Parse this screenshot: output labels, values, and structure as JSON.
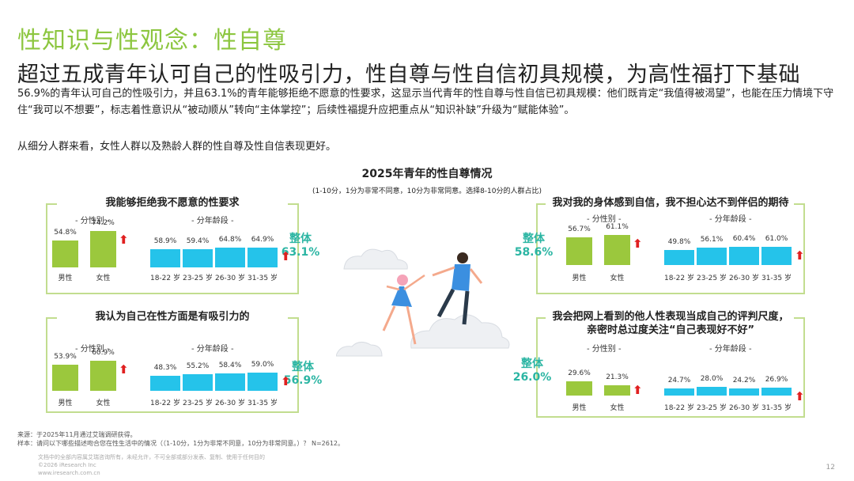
{
  "header": {
    "section_title": "性知识与性观念：性自尊",
    "headline": "超过五成青年认可自己的性吸引力，性自尊与性自信初具规模，为高性福打下基础",
    "intro": "56.9%的青年认可自己的性吸引力，并且63.1%的青年能够拒绝不愿意的性要求，这显示当代青年的性自尊与性自信已初具规模：他们既肯定“我值得被渴望”，也能在压力情境下守住“我可以不想要”，标志着性意识从“被动顺从”转向“主体掌控”；后续性福提升应把重点从“知识补缺”升级为“赋能体验”。",
    "intro2": "从细分人群来看，女性人群以及熟龄人群的性自尊及性自信表现更好。"
  },
  "chart": {
    "title": "2025年青年的性自尊情况",
    "subtitle": "(1-10分，1分为非常不同意，10分为非常同意。选择8-10分的人群占比)",
    "overall_label": "整体",
    "gender_group_label": "- 分性别 -",
    "age_group_label": "- 分年龄段 -"
  },
  "chart_data": [
    {
      "type": "bar",
      "title": "我能够拒绝我不愿意的性要求",
      "overall": "63.1%",
      "gender": {
        "categories": [
          "男性",
          "女性"
        ],
        "values": [
          54.8,
          74.2
        ],
        "labels": [
          "54.8%",
          "74.2%"
        ]
      },
      "age": {
        "categories": [
          "18-22 岁",
          "23-25 岁",
          "26-30 岁",
          "31-35 岁"
        ],
        "values": [
          58.9,
          59.4,
          64.8,
          64.9
        ],
        "labels": [
          "58.9%",
          "59.4%",
          "64.8%",
          "64.9%"
        ]
      }
    },
    {
      "type": "bar",
      "title": "我对我的身体感到自信，我不担心达不到伴侣的期待",
      "overall": "58.6%",
      "gender": {
        "categories": [
          "男性",
          "女性"
        ],
        "values": [
          56.7,
          61.1
        ],
        "labels": [
          "56.7%",
          "61.1%"
        ]
      },
      "age": {
        "categories": [
          "18-22 岁",
          "23-25 岁",
          "26-30 岁",
          "31-35 岁"
        ],
        "values": [
          49.8,
          56.1,
          60.4,
          61.0
        ],
        "labels": [
          "49.8%",
          "56.1%",
          "60.4%",
          "61.0%"
        ]
      }
    },
    {
      "type": "bar",
      "title": "我认为自己在性方面是有吸引力的",
      "overall": "56.9%",
      "gender": {
        "categories": [
          "男性",
          "女性"
        ],
        "values": [
          53.9,
          60.9
        ],
        "labels": [
          "53.9%",
          "60.9%"
        ]
      },
      "age": {
        "categories": [
          "18-22 岁",
          "23-25 岁",
          "26-30 岁",
          "31-35 岁"
        ],
        "values": [
          48.3,
          55.2,
          58.4,
          59.0
        ],
        "labels": [
          "48.3%",
          "55.2%",
          "58.4%",
          "59.0%"
        ]
      }
    },
    {
      "type": "bar",
      "title": "我会把网上看到的他人性表现当成自己的评判尺度，亲密时总过度关注“自己表现好不好”",
      "title_line1": "我会把网上看到的他人性表现当成自己的评判尺度，",
      "title_line2": "亲密时总过度关注“自己表现好不好”",
      "overall": "26.0%",
      "gender": {
        "categories": [
          "男性",
          "女性"
        ],
        "values": [
          29.6,
          21.3
        ],
        "labels": [
          "29.6%",
          "21.3%"
        ]
      },
      "age": {
        "categories": [
          "18-22 岁",
          "23-25 岁",
          "26-30 岁",
          "31-35 岁"
        ],
        "values": [
          24.7,
          28.0,
          24.2,
          26.9
        ],
        "labels": [
          "24.7%",
          "28.0%",
          "24.2%",
          "26.9%"
        ]
      }
    }
  ],
  "colors": {
    "green": "#8cc63f",
    "gender_bar": "#9bc83d",
    "age_bar": "#25c3ea",
    "arrow": "#e02020",
    "overall": "#2bb5a3"
  },
  "arrow_symbol": "⬆",
  "footnotes": {
    "source": "来源：于2025年11月通过艾瑞调研获得。",
    "sample": "样本：请问以下哪些描述吻合您在性生活中的情况（（1-10分，1分为非常不同意，10分为非常同意。）？ N=2612。",
    "rights": "文档中的全部内容属艾瑞咨询所有，未经允许，不可全部或部分发表、复制、使用于任何目的",
    "copyright": "©2026 iResearch Inc",
    "website": "www.iresearch.com.cn"
  },
  "page_number": "12"
}
